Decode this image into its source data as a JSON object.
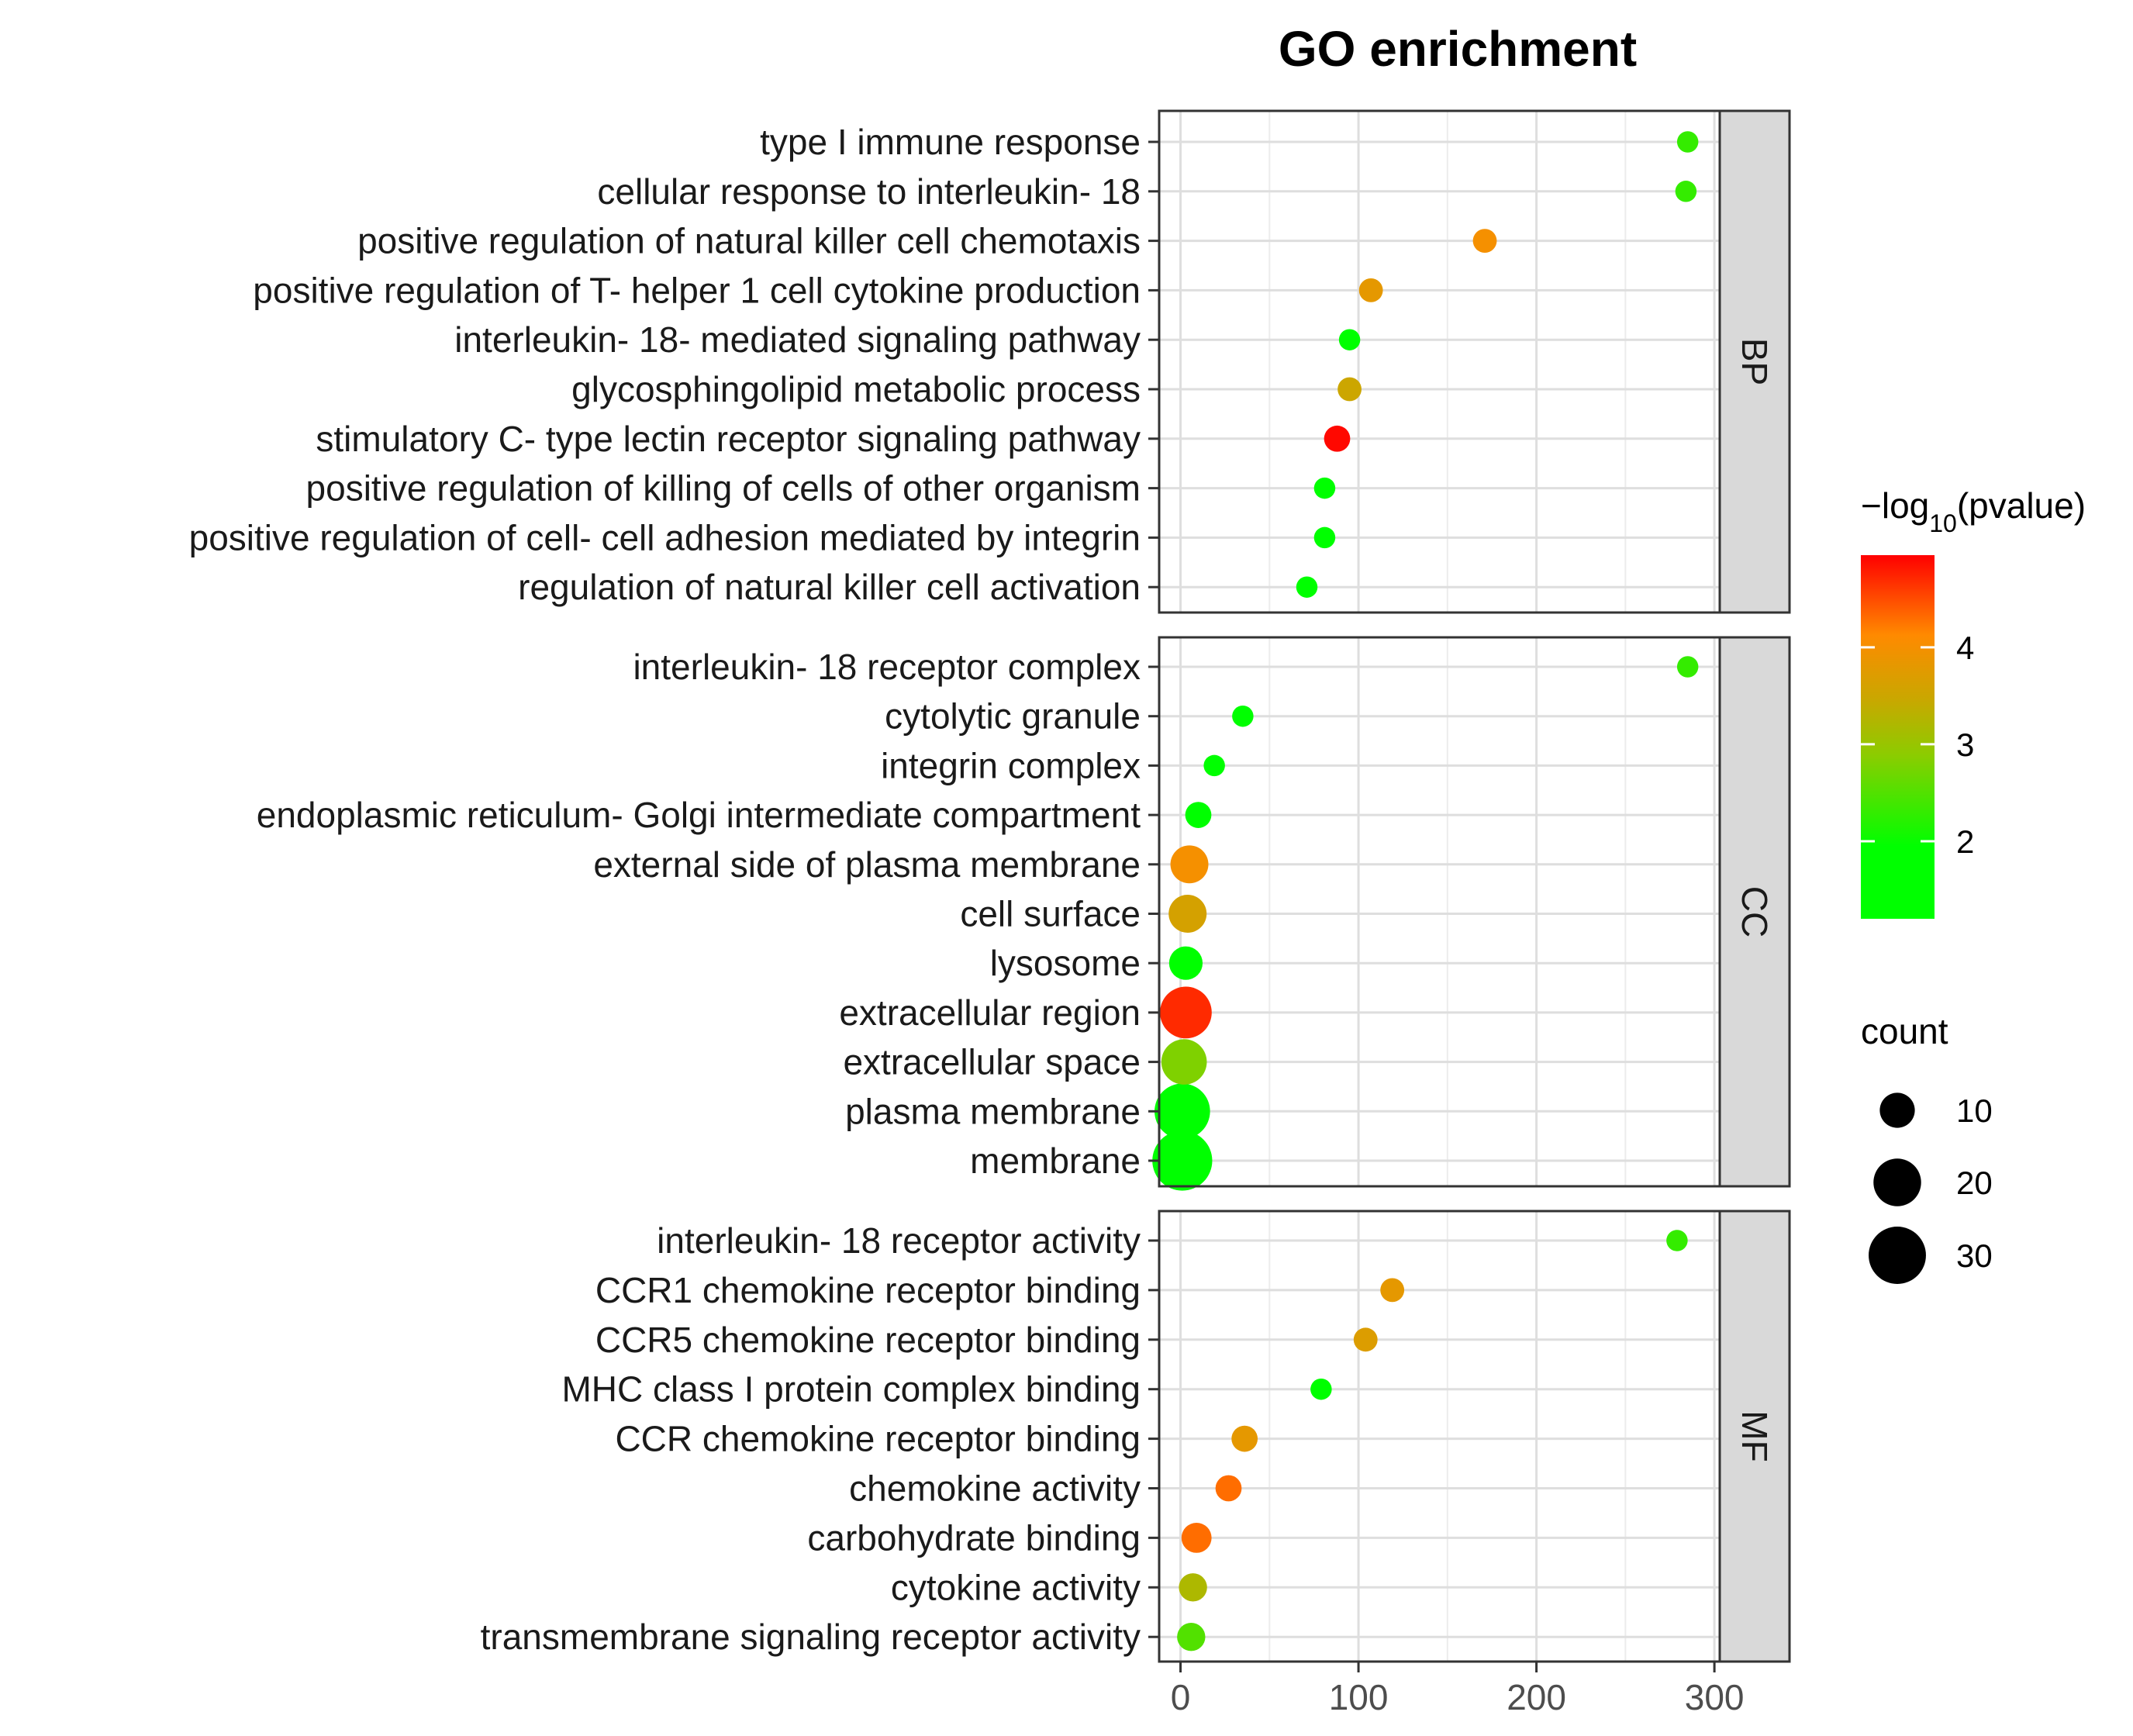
{
  "chart_data": {
    "type": "scatter",
    "title": "GO enrichment",
    "xlabel": "",
    "ylabel": "",
    "xlim": [
      -12,
      303
    ],
    "x_ticks": [
      0,
      100,
      200,
      300
    ],
    "grid": true,
    "facet_labels": [
      "BP",
      "CC",
      "MF"
    ],
    "color_legend": {
      "title_prefix": "−log",
      "title_sub": "10",
      "title_suffix": "(pvalue)",
      "ticks": [
        2,
        3,
        4
      ],
      "range": [
        1.2,
        4.95
      ],
      "low_color": "#00ff00",
      "mid_color": "#c8a800",
      "high_color": "#ff0000"
    },
    "size_legend": {
      "title": "count",
      "values": [
        10,
        20,
        30
      ]
    },
    "panels": [
      {
        "label": "BP",
        "terms": [
          {
            "term": "type I immune response",
            "x": 285,
            "count": 3,
            "neglog10p": 2.3
          },
          {
            "term": "cellular response to interleukin- 18",
            "x": 284,
            "count": 3,
            "neglog10p": 2.3
          },
          {
            "term": "positive regulation of natural killer cell chemotaxis",
            "x": 171,
            "count": 4,
            "neglog10p": 4.0
          },
          {
            "term": "positive regulation of T- helper 1 cell cytokine production",
            "x": 107,
            "count": 4,
            "neglog10p": 3.8
          },
          {
            "term": "interleukin- 18- mediated signaling pathway",
            "x": 95,
            "count": 3,
            "neglog10p": 1.7
          },
          {
            "term": "glycosphingolipid metabolic process",
            "x": 95,
            "count": 4,
            "neglog10p": 3.5
          },
          {
            "term": "stimulatory C- type lectin receptor signaling pathway",
            "x": 88,
            "count": 5,
            "neglog10p": 4.9
          },
          {
            "term": "positive regulation of killing of cells of other organism",
            "x": 81,
            "count": 3,
            "neglog10p": 1.6
          },
          {
            "term": "positive regulation of cell- cell adhesion mediated by integrin",
            "x": 81,
            "count": 3,
            "neglog10p": 1.6
          },
          {
            "term": "regulation of natural killer cell activation",
            "x": 71,
            "count": 3,
            "neglog10p": 1.5
          }
        ]
      },
      {
        "label": "CC",
        "terms": [
          {
            "term": "interleukin- 18 receptor complex",
            "x": 285,
            "count": 3,
            "neglog10p": 2.3
          },
          {
            "term": "cytolytic granule",
            "x": 35,
            "count": 3,
            "neglog10p": 1.6
          },
          {
            "term": "integrin complex",
            "x": 19,
            "count": 3,
            "neglog10p": 1.5
          },
          {
            "term": "endoplasmic reticulum- Golgi intermediate compartment",
            "x": 10,
            "count": 5,
            "neglog10p": 1.6
          },
          {
            "term": "external side of plasma membrane",
            "x": 5,
            "count": 12,
            "neglog10p": 4.0
          },
          {
            "term": "cell surface",
            "x": 4,
            "count": 12,
            "neglog10p": 3.6
          },
          {
            "term": "lysosome",
            "x": 3,
            "count": 9,
            "neglog10p": 1.5
          },
          {
            "term": "extracellular region",
            "x": 3,
            "count": 24,
            "neglog10p": 4.7
          },
          {
            "term": "extracellular space",
            "x": 2,
            "count": 18,
            "neglog10p": 2.8
          },
          {
            "term": "plasma membrane",
            "x": 1,
            "count": 28,
            "neglog10p": 1.5
          },
          {
            "term": "membrane",
            "x": 1,
            "count": 33,
            "neglog10p": 1.5
          }
        ]
      },
      {
        "label": "MF",
        "terms": [
          {
            "term": "interleukin- 18 receptor activity",
            "x": 279,
            "count": 3,
            "neglog10p": 2.3
          },
          {
            "term": "CCR1 chemokine receptor binding",
            "x": 119,
            "count": 4,
            "neglog10p": 3.8
          },
          {
            "term": "CCR5 chemokine receptor binding",
            "x": 104,
            "count": 4,
            "neglog10p": 3.7
          },
          {
            "term": "MHC class I protein complex binding",
            "x": 79,
            "count": 3,
            "neglog10p": 1.7
          },
          {
            "term": "CCR chemokine receptor binding",
            "x": 36,
            "count": 5,
            "neglog10p": 3.8
          },
          {
            "term": "chemokine activity",
            "x": 27,
            "count": 5,
            "neglog10p": 4.3
          },
          {
            "term": "carbohydrate binding",
            "x": 9,
            "count": 7,
            "neglog10p": 4.3
          },
          {
            "term": "cytokine activity",
            "x": 7,
            "count": 6,
            "neglog10p": 3.2
          },
          {
            "term": "transmembrane signaling receptor activity",
            "x": 6,
            "count": 6,
            "neglog10p": 2.5
          }
        ]
      }
    ]
  }
}
